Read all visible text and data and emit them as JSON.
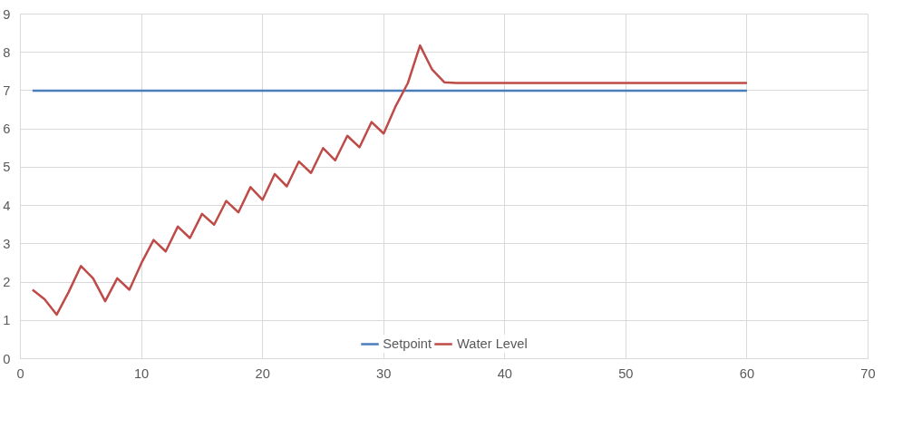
{
  "chart_data": {
    "type": "line",
    "x": [
      1,
      2,
      3,
      4,
      5,
      6,
      7,
      8,
      9,
      10,
      11,
      12,
      13,
      14,
      15,
      16,
      17,
      18,
      19,
      20,
      21,
      22,
      23,
      24,
      25,
      26,
      27,
      28,
      29,
      30,
      31,
      32,
      33,
      34,
      35,
      36,
      37,
      38,
      39,
      40,
      41,
      42,
      43,
      44,
      45,
      46,
      47,
      48,
      49,
      50,
      51,
      52,
      53,
      54,
      55,
      56,
      57,
      58,
      59,
      60
    ],
    "series": [
      {
        "name": "Setpoint",
        "color": "#4a7ebb",
        "values": [
          7,
          7,
          7,
          7,
          7,
          7,
          7,
          7,
          7,
          7,
          7,
          7,
          7,
          7,
          7,
          7,
          7,
          7,
          7,
          7,
          7,
          7,
          7,
          7,
          7,
          7,
          7,
          7,
          7,
          7,
          7,
          7,
          7,
          7,
          7,
          7,
          7,
          7,
          7,
          7,
          7,
          7,
          7,
          7,
          7,
          7,
          7,
          7,
          7,
          7,
          7,
          7,
          7,
          7,
          7,
          7,
          7,
          7,
          7,
          7
        ]
      },
      {
        "name": "Water Level",
        "color": "#be4b48",
        "values": [
          1.8,
          1.55,
          1.15,
          1.75,
          2.42,
          2.1,
          1.5,
          2.1,
          1.8,
          2.5,
          3.1,
          2.8,
          3.45,
          3.15,
          3.78,
          3.5,
          4.12,
          3.82,
          4.48,
          4.15,
          4.82,
          4.5,
          5.15,
          4.85,
          5.5,
          5.18,
          5.82,
          5.52,
          6.18,
          5.88,
          6.6,
          7.2,
          8.18,
          7.55,
          7.22,
          7.2,
          7.2,
          7.2,
          7.2,
          7.2,
          7.2,
          7.2,
          7.2,
          7.2,
          7.2,
          7.2,
          7.2,
          7.2,
          7.2,
          7.2,
          7.2,
          7.2,
          7.2,
          7.2,
          7.2,
          7.2,
          7.2,
          7.2,
          7.2,
          7.2
        ]
      }
    ],
    "xlim": [
      0,
      70
    ],
    "xticks": [
      0,
      10,
      20,
      30,
      40,
      50,
      60,
      70
    ],
    "ylim": [
      0,
      9
    ],
    "yticks": [
      0,
      1,
      2,
      3,
      4,
      5,
      6,
      7,
      8,
      9
    ],
    "grid": true,
    "legend": "bottom",
    "marker": "none",
    "line_style": "solid"
  }
}
